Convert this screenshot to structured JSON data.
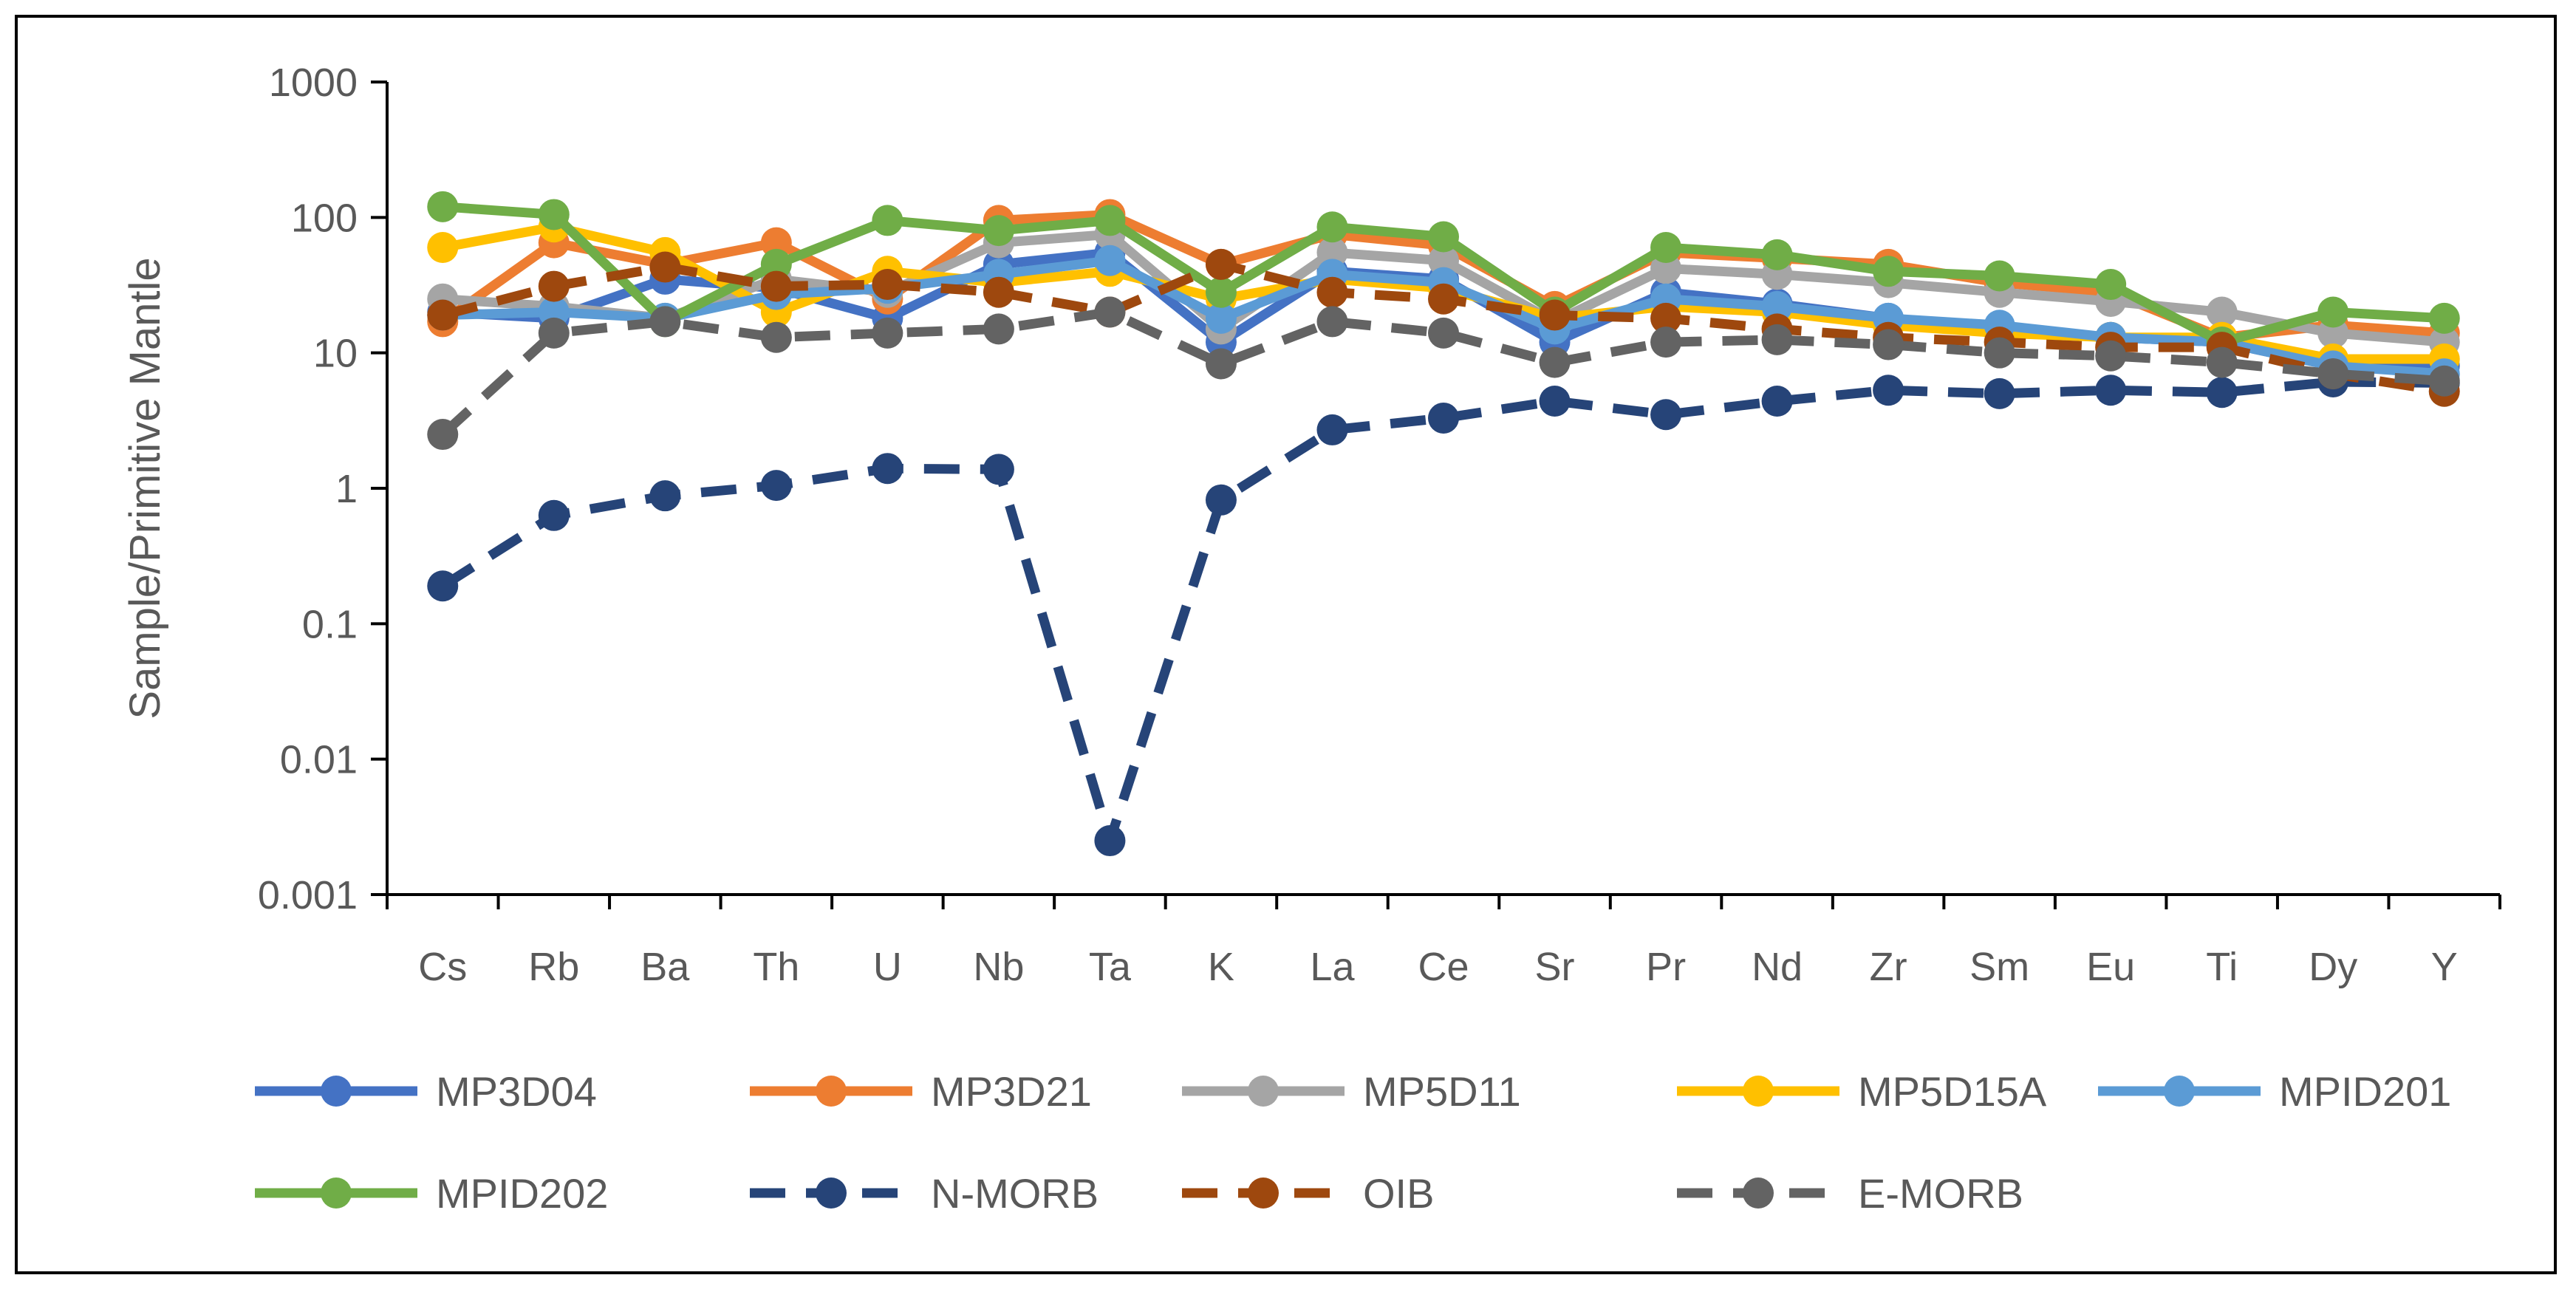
{
  "chart_data": {
    "type": "line",
    "title": "",
    "xlabel": "",
    "ylabel": "Sample/Primitive Mantle",
    "yscale": "log",
    "ylim": [
      0.001,
      1000
    ],
    "yticks": [
      "0.001",
      "0.01",
      "0.1",
      "1",
      "10",
      "100",
      "1000"
    ],
    "grid": false,
    "legend_position": "bottom",
    "categories": [
      "Cs",
      "Rb",
      "Ba",
      "Th",
      "U",
      "Nb",
      "Ta",
      "K",
      "La",
      "Ce",
      "Sr",
      "Pr",
      "Nd",
      "Zr",
      "Sm",
      "Eu",
      "Ti",
      "Dy",
      "Y"
    ],
    "series": [
      {
        "name": "MP3D04",
        "color": "#4472C4",
        "dashed": false,
        "values": [
          20,
          18,
          35,
          30,
          18,
          45,
          55,
          12,
          40,
          35,
          12,
          28,
          23,
          18,
          15,
          13,
          12,
          8,
          8
        ]
      },
      {
        "name": "MP3D21",
        "color": "#ED7D31",
        "dashed": false,
        "values": [
          17,
          65,
          45,
          65,
          25,
          95,
          105,
          45,
          75,
          62,
          22,
          55,
          50,
          45,
          33,
          28,
          13,
          16,
          14
        ]
      },
      {
        "name": "MP5D11",
        "color": "#A5A5A5",
        "dashed": false,
        "values": [
          25,
          22,
          18,
          35,
          28,
          65,
          75,
          15,
          55,
          48,
          17,
          42,
          38,
          33,
          28,
          24,
          20,
          14,
          12
        ]
      },
      {
        "name": "MP5D15A",
        "color": "#FFC000",
        "dashed": false,
        "values": [
          60,
          85,
          55,
          20,
          40,
          33,
          40,
          25,
          35,
          30,
          18,
          22,
          20,
          16,
          14,
          13,
          13,
          9,
          9
        ]
      },
      {
        "name": "MPID201",
        "color": "#5B9BD5",
        "dashed": false,
        "values": [
          19,
          20,
          18,
          27,
          30,
          38,
          48,
          18,
          38,
          33,
          15,
          25,
          22,
          18,
          16,
          13,
          12,
          8,
          7
        ]
      },
      {
        "name": "MPID202",
        "color": "#70AD47",
        "dashed": false,
        "values": [
          120,
          105,
          17,
          45,
          95,
          80,
          95,
          28,
          85,
          72,
          20,
          60,
          53,
          40,
          37,
          32,
          12,
          20,
          18
        ]
      },
      {
        "name": "N-MORB",
        "color": "#264478",
        "dashed": true,
        "values": [
          0.19,
          0.63,
          0.88,
          1.05,
          1.4,
          1.38,
          0.0025,
          0.82,
          2.7,
          3.3,
          4.4,
          3.5,
          4.4,
          5.3,
          5.0,
          5.3,
          5.1,
          6.1,
          6.0
        ]
      },
      {
        "name": "OIB",
        "color": "#9E480E",
        "dashed": true,
        "values": [
          19,
          31,
          43,
          31,
          32,
          28,
          20,
          45,
          28,
          25,
          19,
          18,
          15,
          13,
          12,
          11,
          11,
          7,
          5.2
        ]
      },
      {
        "name": "E-MORB",
        "color": "#636363",
        "dashed": true,
        "values": [
          2.5,
          14,
          17,
          13,
          14,
          15,
          20,
          8.3,
          17,
          14,
          8.5,
          12,
          12.5,
          11.5,
          10,
          9.5,
          8.5,
          7,
          6.2
        ]
      }
    ]
  }
}
